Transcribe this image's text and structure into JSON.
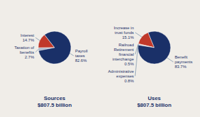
{
  "chart_data": [
    {
      "type": "pie",
      "title": "Sources",
      "subtitle": "$807.5 billion",
      "categories": [
        "Interest",
        "Taxation of benefits",
        "Payroll taxes"
      ],
      "values": [
        14.7,
        2.7,
        82.6
      ],
      "value_labels": [
        "14.7%",
        "2.7%",
        "82.6%"
      ],
      "colors": [
        "#c0392b",
        "#a8b4c8",
        "#1a3068"
      ],
      "data_labels": true
    },
    {
      "type": "pie",
      "title": "Uses",
      "subtitle": "$807.5 billion",
      "categories": [
        "Increase in trust funds",
        "Railroad Retirement financial interchange",
        "Administrative expenses",
        "Benefit payments"
      ],
      "values": [
        15.1,
        0.5,
        0.8,
        83.7
      ],
      "value_labels": [
        "15.1%",
        "0.5%",
        "0.8%",
        "83.7%"
      ],
      "colors": [
        "#c0392b",
        "#c0392b",
        "#a8b4c8",
        "#1a3068"
      ],
      "data_labels": true
    }
  ]
}
